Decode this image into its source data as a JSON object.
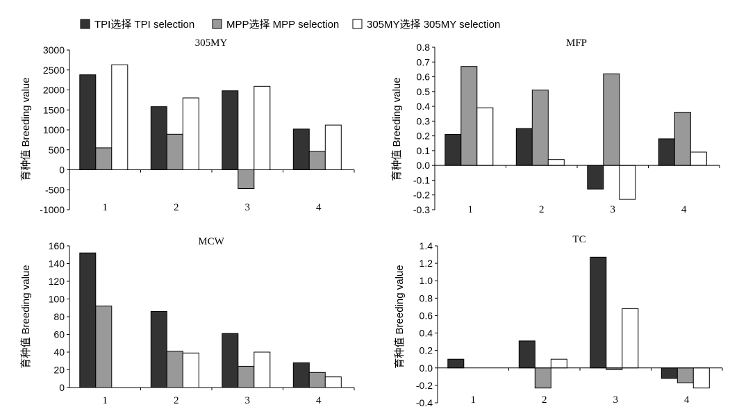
{
  "legend": {
    "items": [
      {
        "name": "TPI选择 TPI selection",
        "color": "#333333"
      },
      {
        "name": "MPP选择 MPP selection",
        "color": "#999999"
      },
      {
        "name": "305MY选择 305MY selection",
        "color": "#ffffff"
      }
    ]
  },
  "colors": {
    "series_fills": [
      "#333333",
      "#999999",
      "#ffffff"
    ],
    "stroke": "#000000"
  },
  "chart_data": [
    {
      "type": "bar",
      "title": "305MY",
      "ylabel": "育种值 Breeding value",
      "xlabel": "",
      "categories": [
        "1",
        "2",
        "3",
        "4"
      ],
      "ylim": [
        -1000,
        3000
      ],
      "ytick_step": 500,
      "ytick_decimals": 0,
      "grid": false,
      "legend_position": "top-left",
      "series": [
        {
          "name": "TPI选择 TPI selection",
          "values": [
            2380,
            1580,
            1980,
            1020
          ]
        },
        {
          "name": "MPP选择 MPP selection",
          "values": [
            550,
            890,
            -470,
            460
          ]
        },
        {
          "name": "305MY选择 305MY selection",
          "values": [
            2630,
            1800,
            2090,
            1120
          ]
        }
      ]
    },
    {
      "type": "bar",
      "title": "MFP",
      "ylabel": "育种值 Breeding value",
      "xlabel": "",
      "categories": [
        "1",
        "2",
        "3",
        "4"
      ],
      "ylim": [
        -0.3,
        0.8
      ],
      "ytick_step": 0.1,
      "ytick_decimals": 1,
      "grid": false,
      "series": [
        {
          "name": "TPI选择 TPI selection",
          "values": [
            0.21,
            0.25,
            -0.16,
            0.18
          ]
        },
        {
          "name": "MPP选择 MPP selection",
          "values": [
            0.67,
            0.51,
            0.62,
            0.36
          ]
        },
        {
          "name": "305MY选择 305MY selection",
          "values": [
            0.39,
            0.04,
            -0.23,
            0.09
          ]
        }
      ]
    },
    {
      "type": "bar",
      "title": "MCW",
      "ylabel": "育种值 Breeding value",
      "xlabel": "",
      "categories": [
        "1",
        "2",
        "3",
        "4"
      ],
      "ylim": [
        0,
        160
      ],
      "ytick_step": 20,
      "ytick_decimals": 0,
      "grid": false,
      "series": [
        {
          "name": "TPI选择 TPI selection",
          "values": [
            152,
            86,
            61,
            28
          ]
        },
        {
          "name": "MPP选择 MPP selection",
          "values": [
            92,
            41,
            24,
            17
          ]
        },
        {
          "name": "305MY选择 305MY selection",
          "values": [
            0,
            39,
            40,
            12
          ]
        }
      ]
    },
    {
      "type": "bar",
      "title": "TC",
      "ylabel": "育种值 Breeding value",
      "xlabel": "",
      "categories": [
        "1",
        "2",
        "3",
        "4"
      ],
      "ylim": [
        -0.4,
        1.4
      ],
      "ytick_step": 0.2,
      "ytick_decimals": 1,
      "grid": false,
      "series": [
        {
          "name": "TPI选择 TPI selection",
          "values": [
            0.1,
            0.31,
            1.27,
            -0.12
          ]
        },
        {
          "name": "MPP选择 MPP selection",
          "values": [
            0,
            -0.23,
            -0.02,
            -0.17
          ]
        },
        {
          "name": "305MY选择 305MY selection",
          "values": [
            0,
            0.1,
            0.68,
            -0.23
          ]
        }
      ]
    }
  ]
}
